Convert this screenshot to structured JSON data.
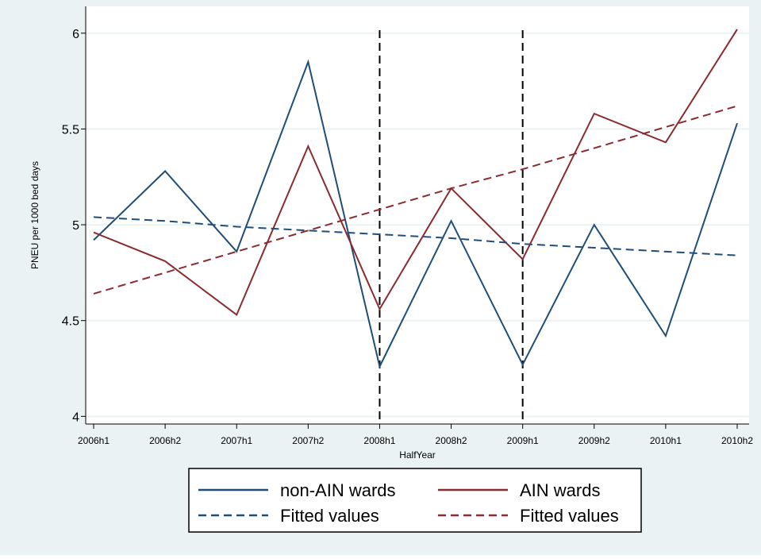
{
  "chart_data": {
    "type": "line",
    "title": "",
    "xlabel": "HalfYear",
    "ylabel": "PNEU per 1000 bed days",
    "categories": [
      "2006h1",
      "2006h2",
      "2007h1",
      "2007h2",
      "2008h1",
      "2008h2",
      "2009h1",
      "2009h2",
      "2010h1",
      "2010h2"
    ],
    "ylim": [
      3.96,
      6.14
    ],
    "yticks": [
      "4",
      "4.5",
      "5",
      "5.5",
      "6"
    ],
    "grid": true,
    "legend_position": "bottom",
    "series": [
      {
        "name": "non-AIN wards",
        "style": "solid",
        "color": "#1f4e79",
        "values": [
          4.92,
          5.28,
          4.86,
          5.85,
          4.26,
          5.02,
          4.27,
          5.0,
          4.42,
          5.53
        ]
      },
      {
        "name": "AIN wards",
        "style": "solid",
        "color": "#8b2b2e",
        "values": [
          4.96,
          4.81,
          4.53,
          5.41,
          4.56,
          5.19,
          4.82,
          5.58,
          5.43,
          6.02
        ]
      },
      {
        "name": "Fitted values",
        "style": "dashed",
        "color": "#1f4e79",
        "values": [
          5.04,
          5.02,
          4.99,
          4.97,
          4.95,
          4.93,
          4.9,
          4.88,
          4.86,
          4.84
        ]
      },
      {
        "name": "Fitted values",
        "style": "dashed",
        "color": "#8b2b2e",
        "values": [
          4.64,
          4.75,
          4.86,
          4.97,
          5.08,
          5.19,
          5.29,
          5.4,
          5.51,
          5.62
        ]
      }
    ],
    "vertical_lines": [
      {
        "category": "2008h1",
        "style": "dashed",
        "color": "#000000"
      },
      {
        "category": "2009h1",
        "style": "dashed",
        "color": "#000000"
      }
    ],
    "colors": {
      "outer_background": "#eaf2f3",
      "plot_background": "#ffffff",
      "grid": "#eaf2f3"
    }
  }
}
